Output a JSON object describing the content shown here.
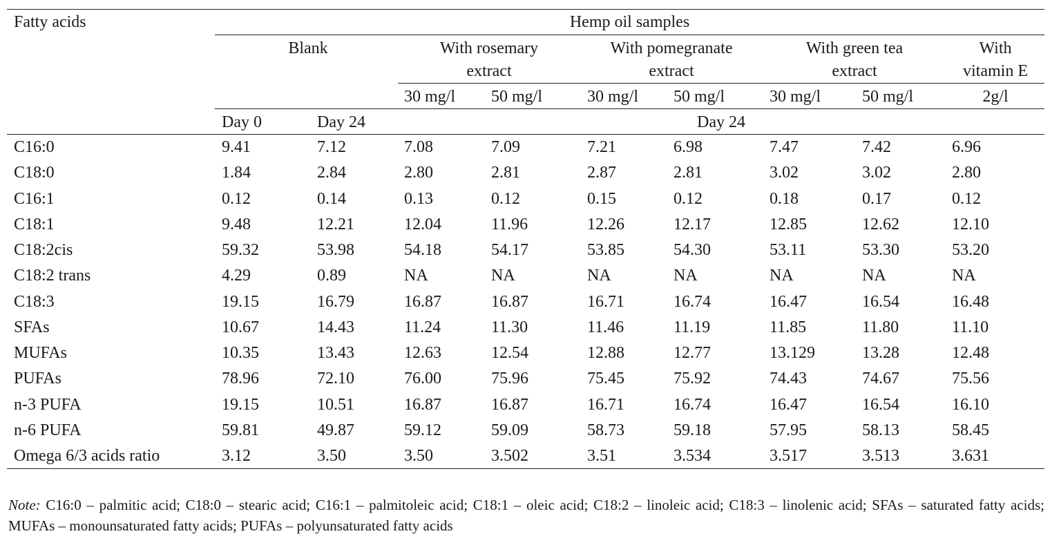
{
  "table": {
    "stub_header": "Fatty acids",
    "group_header": "Hemp oil samples",
    "sample_headers": [
      {
        "line1": "Blank",
        "line2": ""
      },
      {
        "line1": "With rosemary",
        "line2": "extract"
      },
      {
        "line1": "With pomegranate",
        "line2": "extract"
      },
      {
        "line1": "With green tea",
        "line2": "extract"
      },
      {
        "line1": "With",
        "line2": "vitamin E"
      }
    ],
    "concentrations": [
      "30 mg/l",
      "50 mg/l",
      "30 mg/l",
      "50 mg/l",
      "30 mg/l",
      "50 mg/l",
      "2g/l"
    ],
    "day_headers": {
      "blank_day0": "Day 0",
      "blank_day24": "Day 24",
      "treated_day": "Day 24"
    },
    "rows": [
      {
        "label": "C16:0",
        "values": [
          "9.41",
          "7.12",
          "7.08",
          "7.09",
          "7.21",
          "6.98",
          "7.47",
          "7.42",
          "6.96"
        ]
      },
      {
        "label": "C18:0",
        "values": [
          "1.84",
          "2.84",
          "2.80",
          "2.81",
          "2.87",
          "2.81",
          "3.02",
          "3.02",
          "2.80"
        ]
      },
      {
        "label": "C16:1",
        "values": [
          "0.12",
          "0.14",
          "0.13",
          "0.12",
          "0.15",
          "0.12",
          "0.18",
          "0.17",
          "0.12"
        ]
      },
      {
        "label": "C18:1",
        "values": [
          "9.48",
          "12.21",
          "12.04",
          "11.96",
          "12.26",
          "12.17",
          "12.85",
          "12.62",
          "12.10"
        ]
      },
      {
        "label": "C18:2cis",
        "values": [
          "59.32",
          "53.98",
          "54.18",
          "54.17",
          "53.85",
          "54.30",
          "53.11",
          "53.30",
          "53.20"
        ]
      },
      {
        "label": "C18:2 trans",
        "values": [
          "4.29",
          "0.89",
          "NA",
          "NA",
          "NA",
          "NA",
          "NA",
          "NA",
          "NA"
        ]
      },
      {
        "label": "C18:3",
        "values": [
          "19.15",
          "16.79",
          "16.87",
          "16.87",
          "16.71",
          "16.74",
          "16.47",
          "16.54",
          "16.48"
        ]
      },
      {
        "label": "SFAs",
        "values": [
          "10.67",
          "14.43",
          "11.24",
          "11.30",
          "11.46",
          "11.19",
          "11.85",
          "11.80",
          "11.10"
        ]
      },
      {
        "label": "MUFAs",
        "values": [
          "10.35",
          "13.43",
          "12.63",
          "12.54",
          "12.88",
          "12.77",
          "13.129",
          "13.28",
          "12.48"
        ]
      },
      {
        "label": "PUFAs",
        "values": [
          "78.96",
          "72.10",
          "76.00",
          "75.96",
          "75.45",
          "75.92",
          "74.43",
          "74.67",
          "75.56"
        ]
      },
      {
        "label": "n-3 PUFA",
        "values": [
          "19.15",
          "10.51",
          "16.87",
          "16.87",
          "16.71",
          "16.74",
          "16.47",
          "16.54",
          "16.10"
        ]
      },
      {
        "label": "n-6 PUFA",
        "values": [
          "59.81",
          "49.87",
          "59.12",
          "59.09",
          "58.73",
          "59.18",
          "57.95",
          "58.13",
          "58.45"
        ]
      },
      {
        "label": "Omega 6/3 acids ratio",
        "values": [
          "3.12",
          "3.50",
          "3.50",
          "3.502",
          "3.51",
          "3.534",
          "3.517",
          "3.513",
          "3.631"
        ]
      }
    ]
  },
  "note": {
    "label": "Note:",
    "text": " C16:0 – palmitic acid; C18:0 – stearic acid; C16:1 – palmitoleic acid; C18:1 – oleic acid; C18:2 – linoleic acid; C18:3 – linolenic acid; SFAs – saturated fatty acids; MUFAs – monounsaturated fatty acids; PUFAs – polyunsaturated fatty acids"
  }
}
